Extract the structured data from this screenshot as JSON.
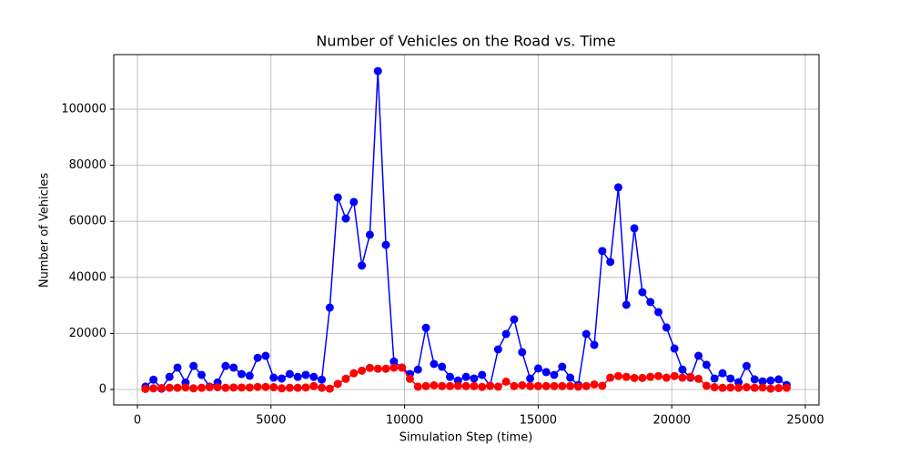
{
  "chart_data": {
    "type": "line",
    "title": "Number of Vehicles on the Road vs. Time",
    "x_label": "Simulation Step (time)",
    "y_label": "Number of Vehicles",
    "x": [
      300,
      600,
      900,
      1200,
      1500,
      1800,
      2100,
      2400,
      2700,
      3000,
      3300,
      3600,
      3900,
      4200,
      4500,
      4800,
      5100,
      5400,
      5700,
      6000,
      6300,
      6600,
      6900,
      7200,
      7500,
      7800,
      8100,
      8400,
      8700,
      9000,
      9300,
      9600,
      9900,
      10200,
      10500,
      10800,
      11100,
      11400,
      11700,
      12000,
      12300,
      12600,
      12900,
      13200,
      13500,
      13800,
      14100,
      14400,
      14700,
      15000,
      15300,
      15600,
      15900,
      16200,
      16500,
      16800,
      17100,
      17400,
      17700,
      18000,
      18300,
      18600,
      18900,
      19200,
      19500,
      19800,
      20100,
      20400,
      20700,
      21000,
      21300,
      21600,
      21900,
      22200,
      22500,
      22800,
      23100,
      23400,
      23700,
      24000,
      24300
    ],
    "series": [
      {
        "color": "#0000ff",
        "values": [
          1000,
          3500,
          300,
          4500,
          7800,
          2500,
          8400,
          5200,
          1000,
          2500,
          8400,
          7800,
          5500,
          4900,
          11300,
          12000,
          4200,
          3900,
          5500,
          4500,
          5200,
          4500,
          3500,
          29200,
          68500,
          61000,
          66900,
          44200,
          55200,
          113600,
          51600,
          10000,
          7800,
          5500,
          7100,
          22000,
          9100,
          8100,
          4500,
          3200,
          4500,
          3900,
          5200,
          1300,
          14300,
          19800,
          25000,
          13300,
          3900,
          7500,
          6200,
          5200,
          8100,
          4200,
          1600,
          19800,
          15900,
          49400,
          45500,
          72100,
          30200,
          57500,
          34700,
          31200,
          27600,
          22100,
          14600,
          7100,
          4200,
          12000,
          8800,
          3900,
          5800,
          3900,
          2600,
          8400,
          3600,
          2900,
          3200,
          3600,
          1600
        ]
      },
      {
        "color": "#ff0000",
        "values": [
          200,
          400,
          500,
          600,
          600,
          700,
          400,
          600,
          800,
          800,
          600,
          700,
          700,
          700,
          900,
          900,
          800,
          400,
          600,
          600,
          700,
          1200,
          600,
          300,
          2000,
          3800,
          5800,
          6700,
          7700,
          7400,
          7400,
          7800,
          7800,
          3800,
          1000,
          1200,
          1500,
          1200,
          1200,
          1300,
          1200,
          1200,
          900,
          1300,
          1000,
          2800,
          1200,
          1500,
          1200,
          1200,
          1200,
          1200,
          1200,
          1200,
          1000,
          1200,
          1800,
          1300,
          4200,
          4800,
          4500,
          4100,
          4100,
          4500,
          4800,
          4200,
          4800,
          4200,
          4500,
          3800,
          1300,
          800,
          600,
          700,
          600,
          800,
          600,
          700,
          300,
          500,
          600
        ]
      }
    ],
    "xlim": [
      -886,
      25511
    ],
    "ylim": [
      -5520,
      119480
    ],
    "xticks": [
      0,
      5000,
      10000,
      15000,
      20000,
      25000
    ],
    "yticks": [
      0,
      20000,
      40000,
      60000,
      80000,
      100000
    ],
    "grid": true
  }
}
